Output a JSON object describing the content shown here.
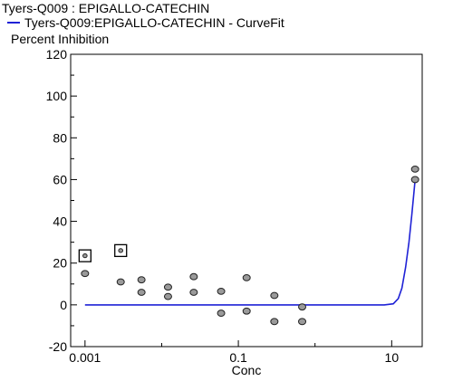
{
  "chart_data": {
    "type": "scatter",
    "title": "Tyers-Q009  :  EPIGALLO-CATECHIN",
    "legend": [
      {
        "name": "Tyers-Q009:EPIGALLO-CATECHIN - CurveFit",
        "color": "#1f22d6"
      }
    ],
    "legend_placement": "top-left",
    "xlabel": "Conc",
    "ylabel": "Percent Inhibition",
    "x_scale": "log",
    "xlim": [
      0.00065,
      25
    ],
    "ylim": [
      -20,
      120
    ],
    "grid": false,
    "x_ticks": [
      {
        "value": 0.001,
        "label": "0.001"
      },
      {
        "value": 0.1,
        "label": "0.1"
      },
      {
        "value": 10,
        "label": "10"
      }
    ],
    "y_ticks": [
      {
        "value": -20,
        "label": "-20"
      },
      {
        "value": 0,
        "label": "0"
      },
      {
        "value": 20,
        "label": "20"
      },
      {
        "value": 40,
        "label": "40"
      },
      {
        "value": 60,
        "label": "60"
      },
      {
        "value": 80,
        "label": "80"
      },
      {
        "value": 100,
        "label": "100"
      },
      {
        "value": 120,
        "label": "120"
      }
    ],
    "points": [
      {
        "x": 0.001,
        "y": 15
      },
      {
        "x": 0.00292,
        "y": 11
      },
      {
        "x": 0.00545,
        "y": 12
      },
      {
        "x": 0.00545,
        "y": 6
      },
      {
        "x": 0.0121,
        "y": 8.5
      },
      {
        "x": 0.0121,
        "y": 4
      },
      {
        "x": 0.0262,
        "y": 13.5
      },
      {
        "x": 0.0262,
        "y": 6
      },
      {
        "x": 0.0596,
        "y": 6.5
      },
      {
        "x": 0.0596,
        "y": -4
      },
      {
        "x": 0.1282,
        "y": 13
      },
      {
        "x": 0.1282,
        "y": -3
      },
      {
        "x": 0.295,
        "y": 4.5
      },
      {
        "x": 0.295,
        "y": -8
      },
      {
        "x": 0.68,
        "y": -1
      },
      {
        "x": 0.68,
        "y": -8
      },
      {
        "x": 20.2,
        "y": 65
      },
      {
        "x": 20.2,
        "y": 60
      }
    ],
    "excluded_points": [
      {
        "x": 0.001,
        "y": 23.5
      },
      {
        "x": 0.00292,
        "y": 26
      }
    ],
    "curve_fit": {
      "name": "Tyers-Q009:EPIGALLO-CATECHIN - CurveFit",
      "color": "#1f22d6",
      "points": [
        {
          "x": 0.001,
          "y": 0
        },
        {
          "x": 8.0,
          "y": 0
        },
        {
          "x": 10.5,
          "y": 0.5
        },
        {
          "x": 12.2,
          "y": 3
        },
        {
          "x": 13.6,
          "y": 8
        },
        {
          "x": 15.2,
          "y": 18
        },
        {
          "x": 16.8,
          "y": 30
        },
        {
          "x": 18.3,
          "y": 43
        },
        {
          "x": 19.4,
          "y": 53
        },
        {
          "x": 20.2,
          "y": 60
        }
      ]
    }
  }
}
